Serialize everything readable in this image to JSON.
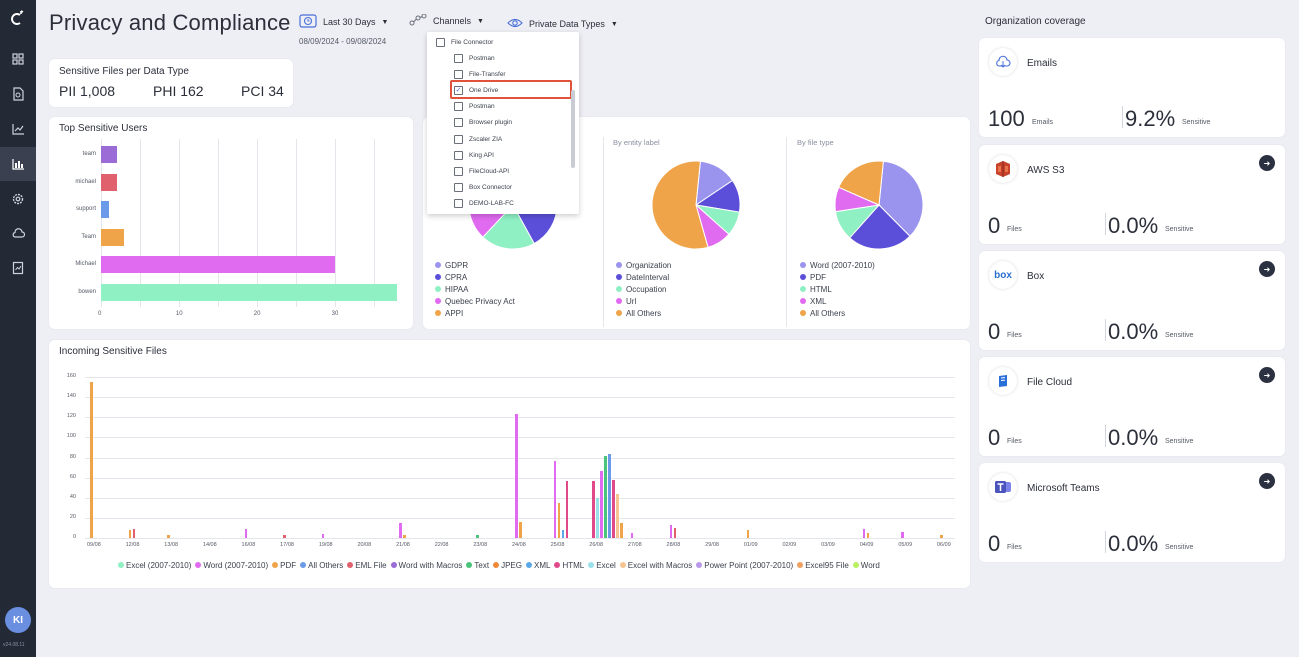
{
  "app": {
    "title": "Privacy and Compliance",
    "version": "v24.08.11",
    "user_initials": "KI"
  },
  "filters": {
    "date_label": "Last 30 Days",
    "date_range": "08/09/2024 - 09/08/2024",
    "channels_label": "Channels",
    "data_types_label": "Private Data Types"
  },
  "channels_dropdown": {
    "group": "File Connector",
    "items": [
      {
        "label": "Postman",
        "checked": false
      },
      {
        "label": "File-Transfer",
        "checked": false
      },
      {
        "label": "One Drive",
        "checked": true
      },
      {
        "label": "Postman",
        "checked": false
      },
      {
        "label": "Browser plugin",
        "checked": false
      },
      {
        "label": "Zscaler ZIA",
        "checked": false
      },
      {
        "label": "King API",
        "checked": false
      },
      {
        "label": "FileCloud-API",
        "checked": false
      },
      {
        "label": "Box Connector",
        "checked": false
      },
      {
        "label": "DEMO-LAB-FC",
        "checked": false
      }
    ]
  },
  "sensitive_files": {
    "title": "Sensitive Files per Data Type",
    "items": [
      {
        "label": "PII 1,008"
      },
      {
        "label": "PHI 162"
      },
      {
        "label": "PCI 34"
      }
    ]
  },
  "top_users": {
    "title": "Top Sensitive Users",
    "chart_data": {
      "type": "bar",
      "orientation": "horizontal",
      "categories": [
        "team",
        "michael",
        "support",
        "Team",
        "Michael",
        "bowen"
      ],
      "values": [
        2,
        2,
        1,
        3,
        30,
        38
      ],
      "colors": [
        "#9b6bd6",
        "#e0606e",
        "#6b9be8",
        "#f0a44a",
        "#e06af0",
        "#8ff0c4"
      ],
      "xticks": [
        "0",
        "10",
        "20",
        "30"
      ],
      "xlim": [
        0,
        38
      ]
    }
  },
  "pies": [
    {
      "heading": "",
      "legend": [
        {
          "label": "GDPR",
          "color": "#9b94ee"
        },
        {
          "label": "CPRA",
          "color": "#5b4fd9"
        },
        {
          "label": "HIPAA",
          "color": "#8ff0c4"
        },
        {
          "label": "Quebec Privacy Act",
          "color": "#e06af0"
        },
        {
          "label": "APPI",
          "color": "#f0a44a"
        }
      ]
    },
    {
      "heading": "By entity label",
      "legend": [
        {
          "label": "Organization",
          "color": "#9b94ee"
        },
        {
          "label": "DateInterval",
          "color": "#5b4fd9"
        },
        {
          "label": "Occupation",
          "color": "#8ff0c4"
        },
        {
          "label": "Url",
          "color": "#e06af0"
        },
        {
          "label": "All Others",
          "color": "#f0a44a"
        }
      ],
      "chart_data": {
        "type": "pie",
        "values": [
          14,
          12,
          9,
          9,
          56
        ],
        "labels": [
          "Organization",
          "DateInterval",
          "Occupation",
          "Url",
          "All Others"
        ]
      }
    },
    {
      "heading": "By file type",
      "legend": [
        {
          "label": "Word (2007-2010)",
          "color": "#9b94ee"
        },
        {
          "label": "PDF",
          "color": "#5b4fd9"
        },
        {
          "label": "HTML",
          "color": "#8ff0c4"
        },
        {
          "label": "XML",
          "color": "#e06af0"
        },
        {
          "label": "All Others",
          "color": "#f0a44a"
        }
      ],
      "chart_data": {
        "type": "pie",
        "values": [
          36,
          24,
          11,
          9,
          20
        ],
        "labels": [
          "Word (2007-2010)",
          "PDF",
          "HTML",
          "XML",
          "All Others"
        ]
      }
    }
  ],
  "incoming": {
    "title": "Incoming Sensitive Files",
    "chart_data": {
      "type": "bar",
      "yticks": [
        "0",
        "20",
        "40",
        "60",
        "80",
        "100",
        "120",
        "140",
        "160"
      ],
      "ylim": [
        0,
        160
      ],
      "xticks": [
        "09/08",
        "12/08",
        "13/08",
        "14/08",
        "16/08",
        "17/08",
        "19/08",
        "20/08",
        "21/08",
        "22/08",
        "23/08",
        "24/08",
        "25/08",
        "26/08",
        "27/08",
        "28/08",
        "29/08",
        "01/09",
        "02/09",
        "03/09",
        "04/09",
        "05/09",
        "06/09"
      ],
      "legend": [
        {
          "label": "Excel (2007-2010)",
          "color": "#8ff0c4"
        },
        {
          "label": "Word (2007-2010)",
          "color": "#e06af0"
        },
        {
          "label": "PDF",
          "color": "#f0a44a"
        },
        {
          "label": "All Others",
          "color": "#6b9be8"
        },
        {
          "label": "EML File",
          "color": "#e0606e"
        },
        {
          "label": "Word with Macros",
          "color": "#9b6bd6"
        },
        {
          "label": "Text",
          "color": "#4ac47a"
        },
        {
          "label": "JPEG",
          "color": "#f08a3a"
        },
        {
          "label": "XML",
          "color": "#5aa8e8"
        },
        {
          "label": "HTML",
          "color": "#e04a8a"
        },
        {
          "label": "Excel",
          "color": "#9ae0e8"
        },
        {
          "label": "Excel with Macros",
          "color": "#f5c490"
        },
        {
          "label": "Power Point (2007-2010)",
          "color": "#b89ae8"
        },
        {
          "label": "Excel95 File",
          "color": "#f0a060"
        },
        {
          "label": "Word",
          "color": "#b8f060"
        }
      ],
      "bars": [
        {
          "date": "09/08",
          "series": "PDF",
          "value": 155
        },
        {
          "date": "12/08",
          "series": "PDF",
          "value": 8
        },
        {
          "date": "12/08",
          "series": "EML File",
          "value": 9
        },
        {
          "date": "13/08",
          "series": "PDF",
          "value": 3
        },
        {
          "date": "16/08",
          "series": "Word (2007-2010)",
          "value": 9
        },
        {
          "date": "17/08",
          "series": "EML File",
          "value": 3
        },
        {
          "date": "19/08",
          "series": "Word (2007-2010)",
          "value": 4
        },
        {
          "date": "21/08",
          "series": "Word (2007-2010)",
          "value": 15
        },
        {
          "date": "21/08",
          "series": "PDF",
          "value": 3
        },
        {
          "date": "23/08",
          "series": "Text",
          "value": 3
        },
        {
          "date": "24/08",
          "series": "Word (2007-2010)",
          "value": 123
        },
        {
          "date": "24/08",
          "series": "PDF",
          "value": 16
        },
        {
          "date": "25/08",
          "series": "Word (2007-2010)",
          "value": 77
        },
        {
          "date": "25/08",
          "series": "PDF",
          "value": 35
        },
        {
          "date": "25/08",
          "series": "XML",
          "value": 8
        },
        {
          "date": "25/08",
          "series": "HTML",
          "value": 57
        },
        {
          "date": "26/08",
          "series": "HTML",
          "value": 57
        },
        {
          "date": "26/08",
          "series": "Excel",
          "value": 40
        },
        {
          "date": "26/08",
          "series": "Word (2007-2010)",
          "value": 67
        },
        {
          "date": "26/08",
          "series": "Text",
          "value": 81
        },
        {
          "date": "26/08",
          "series": "All Others",
          "value": 83
        },
        {
          "date": "26/08",
          "series": "HTML",
          "value": 58
        },
        {
          "date": "26/08",
          "series": "Excel with Macros",
          "value": 44
        },
        {
          "date": "26/08",
          "series": "PDF",
          "value": 15
        },
        {
          "date": "27/08",
          "series": "Word (2007-2010)",
          "value": 5
        },
        {
          "date": "28/08",
          "series": "Word (2007-2010)",
          "value": 13
        },
        {
          "date": "28/08",
          "series": "EML File",
          "value": 10
        },
        {
          "date": "01/09",
          "series": "PDF",
          "value": 8
        },
        {
          "date": "04/09",
          "series": "Word (2007-2010)",
          "value": 9
        },
        {
          "date": "04/09",
          "series": "PDF",
          "value": 5
        },
        {
          "date": "05/09",
          "series": "Word (2007-2010)",
          "value": 6
        },
        {
          "date": "06/09",
          "series": "PDF",
          "value": 3
        }
      ]
    }
  },
  "org": {
    "heading": "Organization coverage",
    "cards": [
      {
        "name": "Emails",
        "count": "100",
        "unit": "Emails",
        "pct": "9.2%",
        "pct_unit": "Sensitive",
        "icon": "cloud-icon",
        "arrow": false
      },
      {
        "name": "AWS S3",
        "count": "0",
        "unit": "Files",
        "pct": "0.0%",
        "pct_unit": "Sensitive",
        "icon": "aws-s3-icon",
        "arrow": true
      },
      {
        "name": "Box",
        "count": "0",
        "unit": "Files",
        "pct": "0.0%",
        "pct_unit": "Sensitive",
        "icon": "box-icon",
        "arrow": true,
        "logo_text": "box"
      },
      {
        "name": "File Cloud",
        "count": "0",
        "unit": "Files",
        "pct": "0.0%",
        "pct_unit": "Sensitive",
        "icon": "filecloud-icon",
        "arrow": true
      },
      {
        "name": "Microsoft Teams",
        "count": "0",
        "unit": "Files",
        "pct": "0.0%",
        "pct_unit": "Sensitive",
        "icon": "teams-icon",
        "arrow": true
      }
    ]
  }
}
